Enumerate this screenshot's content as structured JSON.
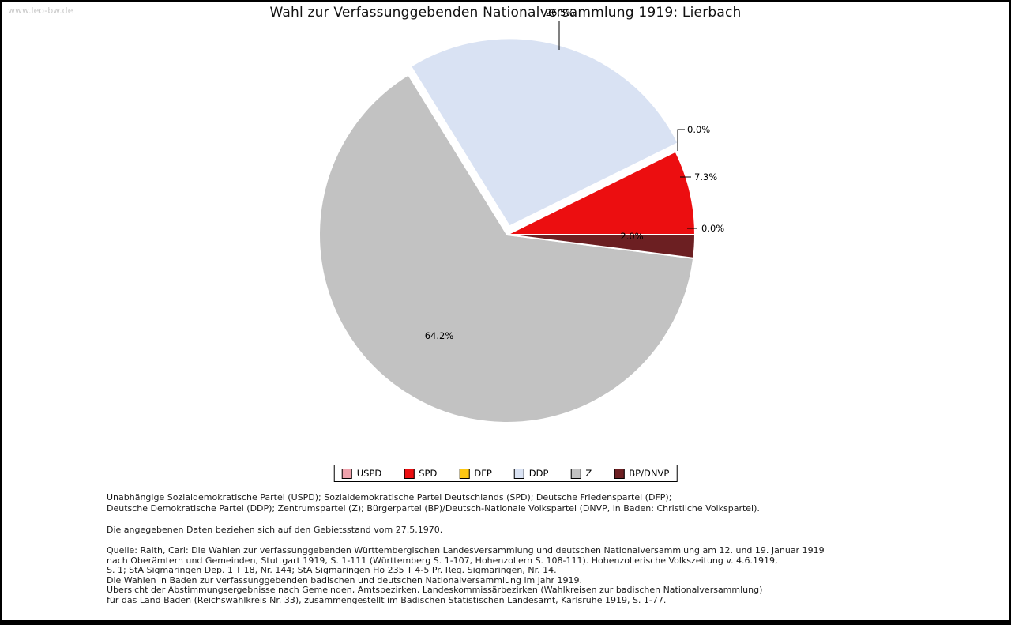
{
  "watermark": "www.leo-bw.de",
  "title": "Wahl zur Verfassunggebenden Nationalversammlung 1919: Lierbach",
  "chart_data": {
    "type": "pie",
    "title": "Wahl zur Verfassunggebenden Nationalversammlung 1919: Lierbach",
    "unit": "%",
    "start_angle_deg": 0,
    "direction": "counterclockwise",
    "exploded_slice": "DDP",
    "legend_position": "bottom",
    "slices": [
      {
        "label": "USPD",
        "value": 0.0,
        "display": "0.0%",
        "color": "#f0a2ac"
      },
      {
        "label": "SPD",
        "value": 7.3,
        "display": "7.3%",
        "color": "#ec0e10"
      },
      {
        "label": "DFP",
        "value": 0.0,
        "display": "0.0%",
        "color": "#fdc712"
      },
      {
        "label": "DDP",
        "value": 26.5,
        "display": "26.5%",
        "color": "#d9e2f3"
      },
      {
        "label": "Z",
        "value": 64.2,
        "display": "64.2%",
        "color": "#c2c2c2"
      },
      {
        "label": "BP/DNVP",
        "value": 2.0,
        "display": "2.0%",
        "color": "#6c1f22"
      }
    ]
  },
  "notes": {
    "party_definitions": [
      "Unabhängige Sozialdemokratische Partei (USPD); Sozialdemokratische Partei Deutschlands (SPD); Deutsche Friedenspartei (DFP);",
      "Deutsche Demokratische Partei (DDP); Zentrumspartei (Z); Bürgerpartei (BP)/Deutsch-Nationale Volkspartei (DNVP, in Baden: Christliche Volkspartei)."
    ],
    "data_note": "Die angegebenen Daten beziehen sich auf den Gebietsstand vom 27.5.1970.",
    "source_lines": [
      "Quelle: Raith, Carl: Die Wahlen zur verfassunggebenden Württembergischen Landesversammlung und deutschen Nationalversammlung am 12. und 19. Januar 1919",
      "nach Oberämtern und Gemeinden, Stuttgart 1919, S. 1-111 (Württemberg S. 1-107, Hohenzollern S. 108-111). Hohenzollerische Volkszeitung v. 4.6.1919,",
      "S. 1; StA Sigmaringen Dep. 1 T 18, Nr. 144; StA Sigmaringen Ho 235 T 4-5 Pr. Reg. Sigmaringen, Nr. 14.",
      "Die Wahlen in Baden zur verfassunggebenden badischen und deutschen Nationalversammlung im jahr 1919.",
      "Übersicht der Abstimmungsergebnisse nach Gemeinden, Amtsbezirken, Landeskommissärbezirken (Wahlkreisen zur badischen Nationalversammlung)",
      "für das Land Baden (Reichswahlkreis Nr. 33), zusammengestellt im Badischen Statistischen Landesamt, Karlsruhe 1919, S. 1-77."
    ]
  }
}
